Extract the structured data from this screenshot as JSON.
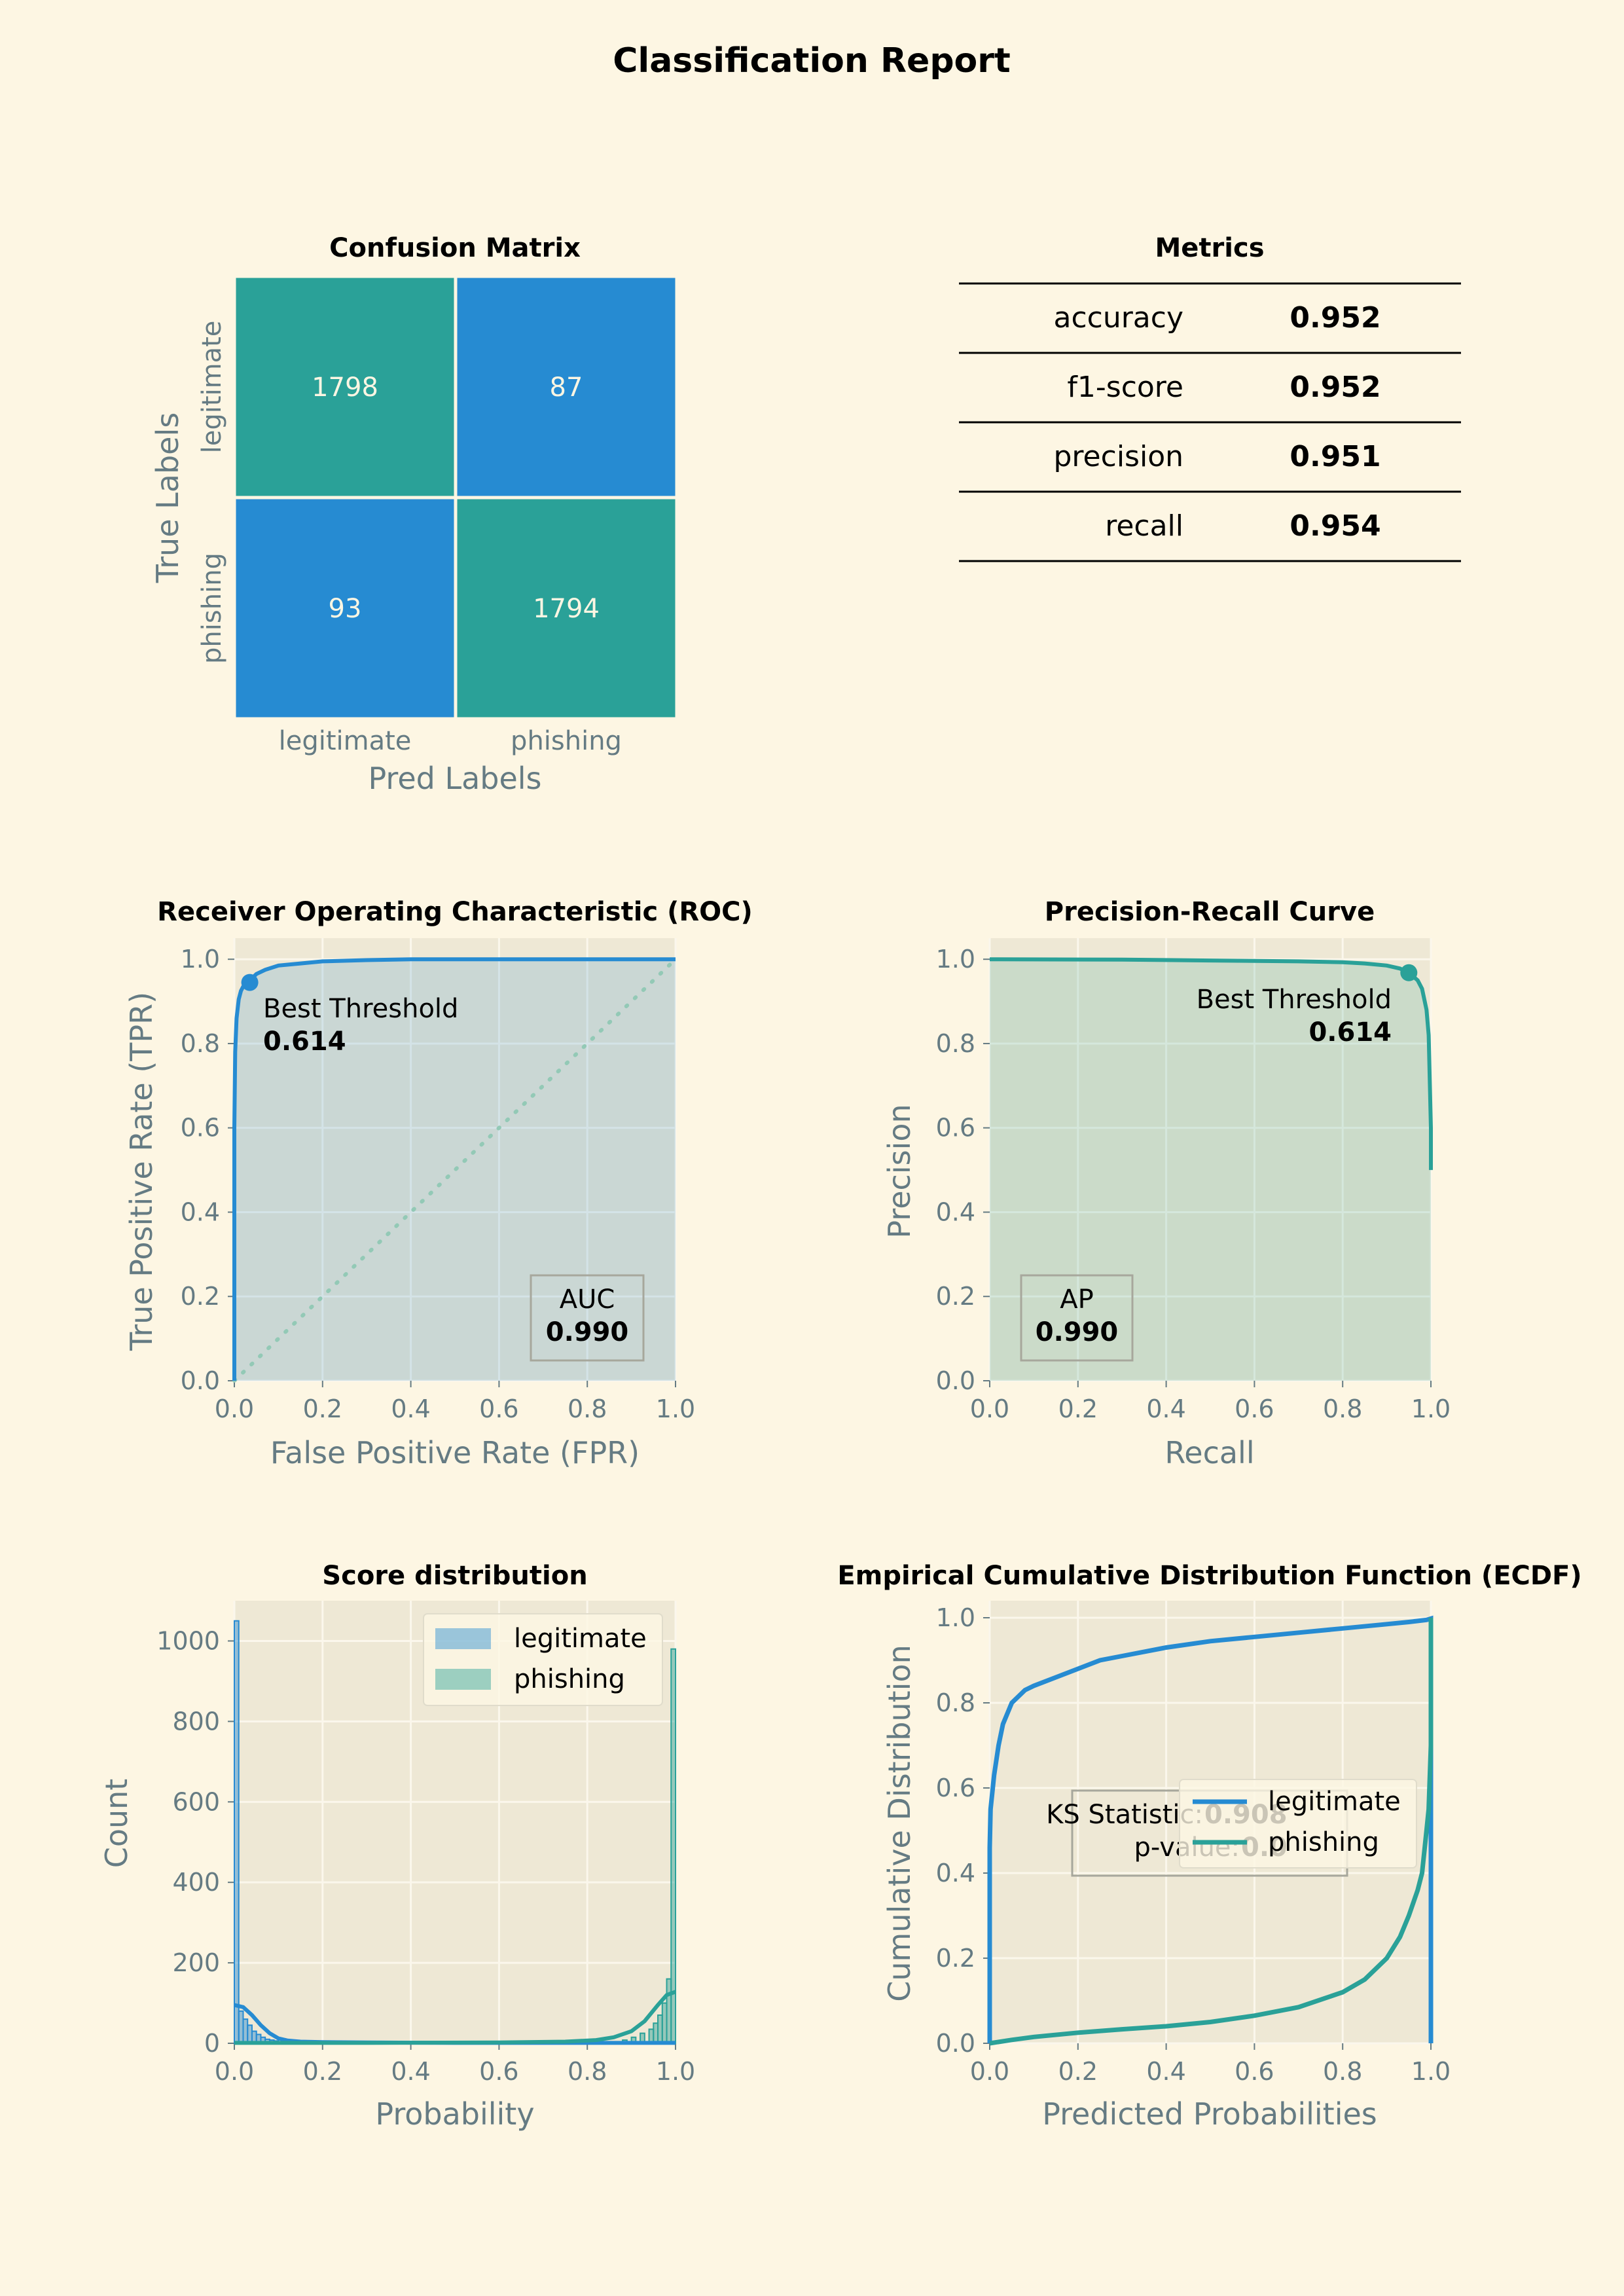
{
  "report": {
    "title": "Classification Report"
  },
  "theme": {
    "background": "#fdf6e3",
    "panel": "#eee8d5",
    "grid": "#fbf7ec",
    "axis_text": "#657b83",
    "title_text": "#000000",
    "legitimate_color": "#268bd2",
    "phishing_color": "#2aa198",
    "diagonal_color": "#93c9b6"
  },
  "chart_data": [
    {
      "id": "confusion_matrix",
      "type": "heatmap",
      "title": "Confusion Matrix",
      "xlabel": "Pred Labels",
      "ylabel": "True Labels",
      "x_categories": [
        "legitimate",
        "phishing"
      ],
      "y_categories": [
        "legitimate",
        "phishing"
      ],
      "values": [
        [
          1798,
          87
        ],
        [
          93,
          1794
        ]
      ]
    },
    {
      "id": "metrics",
      "type": "table",
      "title": "Metrics",
      "rows": [
        {
          "label": "accuracy",
          "value": "0.952"
        },
        {
          "label": "f1-score",
          "value": "0.952"
        },
        {
          "label": "precision",
          "value": "0.951"
        },
        {
          "label": "recall",
          "value": "0.954"
        }
      ]
    },
    {
      "id": "roc",
      "type": "area",
      "title": "Receiver Operating Characteristic (ROC)",
      "xlabel": "False Positive Rate (FPR)",
      "ylabel": "True Positive Rate (TPR)",
      "xlim": [
        0,
        1
      ],
      "ylim": [
        0,
        1
      ],
      "xticks": [
        "0.0",
        "0.2",
        "0.4",
        "0.6",
        "0.8",
        "1.0"
      ],
      "yticks": [
        "0.0",
        "0.2",
        "0.4",
        "0.6",
        "0.8",
        "1.0"
      ],
      "x": [
        0,
        0,
        0.002,
        0.005,
        0.01,
        0.015,
        0.02,
        0.03,
        0.04,
        0.05,
        0.07,
        0.1,
        0.15,
        0.2,
        0.3,
        0.4,
        0.6,
        1.0
      ],
      "y": [
        0,
        0.6,
        0.78,
        0.86,
        0.905,
        0.925,
        0.935,
        0.945,
        0.955,
        0.965,
        0.975,
        0.985,
        0.99,
        0.995,
        0.998,
        1.0,
        1.0,
        1.0
      ],
      "best_point": {
        "x": 0.035,
        "y": 0.945
      },
      "annotation_label": "Best Threshold",
      "annotation_value": "0.614",
      "box_label": "AUC",
      "box_value": "0.990"
    },
    {
      "id": "pr",
      "type": "area",
      "title": "Precision-Recall Curve",
      "xlabel": "Recall",
      "ylabel": "Precision",
      "xlim": [
        0,
        1
      ],
      "ylim": [
        0,
        1
      ],
      "xticks": [
        "0.0",
        "0.2",
        "0.4",
        "0.6",
        "0.8",
        "1.0"
      ],
      "yticks": [
        "0.0",
        "0.2",
        "0.4",
        "0.6",
        "0.8",
        "1.0"
      ],
      "x": [
        0,
        0.3,
        0.5,
        0.7,
        0.8,
        0.85,
        0.9,
        0.93,
        0.95,
        0.97,
        0.98,
        0.99,
        0.995,
        1.0,
        1.0
      ],
      "y": [
        1.0,
        0.999,
        0.997,
        0.995,
        0.993,
        0.99,
        0.985,
        0.978,
        0.968,
        0.95,
        0.93,
        0.88,
        0.82,
        0.6,
        0.5
      ],
      "best_point": {
        "x": 0.95,
        "y": 0.968
      },
      "annotation_label": "Best Threshold",
      "annotation_value": "0.614",
      "box_label": "AP",
      "box_value": "0.990"
    },
    {
      "id": "score_distribution",
      "type": "bar",
      "title": "Score distribution",
      "xlabel": "Probability",
      "ylabel": "Count",
      "xlim": [
        0,
        1
      ],
      "ylim": [
        0,
        1100
      ],
      "xticks": [
        "0.0",
        "0.2",
        "0.4",
        "0.6",
        "0.8",
        "1.0"
      ],
      "yticks": [
        "0",
        "200",
        "400",
        "600",
        "800",
        "1000"
      ],
      "legend_position": "top-right",
      "series": [
        {
          "name": "legitimate",
          "bin_starts": [
            0.0,
            0.01,
            0.02,
            0.03,
            0.04,
            0.05,
            0.06,
            0.07,
            0.08,
            0.09,
            0.1,
            0.12
          ],
          "bin_width": 0.01,
          "counts": [
            1050,
            80,
            60,
            45,
            30,
            22,
            15,
            10,
            8,
            6,
            4,
            3
          ],
          "kde_x": [
            0.0,
            0.02,
            0.04,
            0.06,
            0.08,
            0.1,
            0.12,
            0.15,
            0.2,
            0.3,
            0.5,
            0.7,
            0.85,
            1.0
          ],
          "kde_y": [
            95,
            90,
            70,
            45,
            25,
            12,
            7,
            4,
            3,
            2,
            1,
            1,
            1,
            1
          ]
        },
        {
          "name": "phishing",
          "bin_starts": [
            0.88,
            0.9,
            0.92,
            0.94,
            0.95,
            0.96,
            0.97,
            0.98,
            0.99
          ],
          "bin_width": 0.01,
          "counts": [
            8,
            15,
            25,
            35,
            50,
            70,
            100,
            160,
            980
          ],
          "kde_x": [
            0.0,
            0.3,
            0.6,
            0.75,
            0.82,
            0.86,
            0.9,
            0.93,
            0.96,
            0.98,
            1.0
          ],
          "kde_y": [
            1,
            1,
            2,
            4,
            8,
            15,
            30,
            55,
            95,
            120,
            128
          ]
        }
      ]
    },
    {
      "id": "ecdf",
      "type": "line",
      "title": "Empirical Cumulative Distribution Function (ECDF)",
      "xlabel": "Predicted Probabilities",
      "ylabel": "Cumulative Distribution",
      "xlim": [
        0,
        1
      ],
      "ylim": [
        0,
        1
      ],
      "xticks": [
        "0.0",
        "0.2",
        "0.4",
        "0.6",
        "0.8",
        "1.0"
      ],
      "yticks": [
        "0.0",
        "0.2",
        "0.4",
        "0.6",
        "0.8",
        "1.0"
      ],
      "legend_position": "center-right",
      "stats_label_1": "KS Statistic:",
      "stats_value_1": "0.908",
      "stats_label_2": "p-value:",
      "stats_value_2": "0.0",
      "series": [
        {
          "name": "legitimate",
          "x": [
            0,
            0,
            0.002,
            0.01,
            0.02,
            0.03,
            0.05,
            0.08,
            0.1,
            0.15,
            0.2,
            0.25,
            0.3,
            0.4,
            0.5,
            0.6,
            0.7,
            0.8,
            0.9,
            0.95,
            0.99,
            1.0,
            1.0
          ],
          "y": [
            0,
            0.46,
            0.55,
            0.63,
            0.7,
            0.75,
            0.8,
            0.83,
            0.84,
            0.86,
            0.88,
            0.9,
            0.91,
            0.93,
            0.945,
            0.955,
            0.965,
            0.975,
            0.985,
            0.99,
            0.995,
            0.998,
            0
          ]
        },
        {
          "name": "phishing",
          "x": [
            0,
            0.05,
            0.1,
            0.2,
            0.3,
            0.4,
            0.5,
            0.6,
            0.7,
            0.8,
            0.85,
            0.9,
            0.93,
            0.95,
            0.97,
            0.98,
            0.99,
            0.995,
            1.0,
            1.0
          ],
          "y": [
            0,
            0.008,
            0.015,
            0.025,
            0.033,
            0.04,
            0.05,
            0.065,
            0.085,
            0.12,
            0.15,
            0.2,
            0.25,
            0.3,
            0.36,
            0.4,
            0.5,
            0.55,
            0.7,
            1.0
          ]
        }
      ]
    }
  ]
}
